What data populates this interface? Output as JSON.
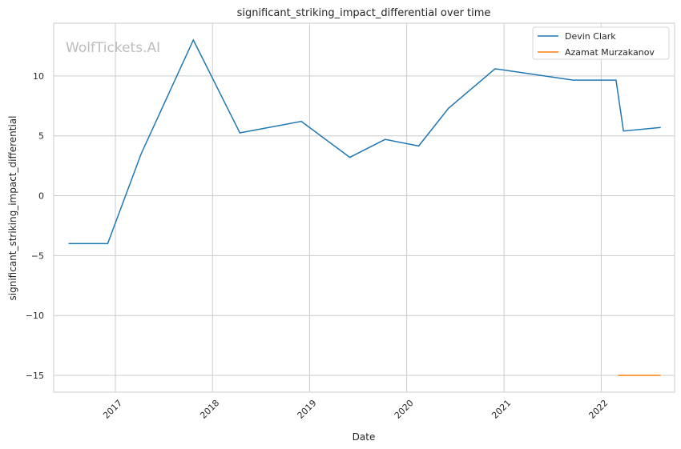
{
  "chart_data": {
    "type": "line",
    "title": "significant_striking_impact_differential over time",
    "xlabel": "Date",
    "ylabel": "significant_striking_impact_differential",
    "watermark": "WolfTickets.AI",
    "x_ticks": [
      "2017",
      "2018",
      "2019",
      "2020",
      "2021",
      "2022"
    ],
    "y_ticks": [
      -15,
      -10,
      -5,
      0,
      5,
      10
    ],
    "y_tick_labels": [
      "−15",
      "−10",
      "−5",
      "0",
      "5",
      "10"
    ],
    "xlim": [
      "2016-05-14",
      "2022-10-04"
    ],
    "ylim": [
      -16.4,
      14.4
    ],
    "grid": true,
    "legend_position": "top-right",
    "series": [
      {
        "name": "Devin Clark",
        "color": "#1f77b4",
        "points": [
          {
            "x": "2016-07-09",
            "y": -4.0
          },
          {
            "x": "2016-12-03",
            "y": -4.0
          },
          {
            "x": "2017-04-08",
            "y": 3.5
          },
          {
            "x": "2017-10-21",
            "y": 13.0
          },
          {
            "x": "2018-04-14",
            "y": 5.25
          },
          {
            "x": "2018-12-01",
            "y": 6.2
          },
          {
            "x": "2019-06-01",
            "y": 3.2
          },
          {
            "x": "2019-10-12",
            "y": 4.7
          },
          {
            "x": "2020-02-15",
            "y": 4.15
          },
          {
            "x": "2020-06-06",
            "y": 7.3
          },
          {
            "x": "2020-11-28",
            "y": 10.6
          },
          {
            "x": "2021-09-18",
            "y": 9.65
          },
          {
            "x": "2022-02-26",
            "y": 9.65
          },
          {
            "x": "2022-03-26",
            "y": 5.4
          },
          {
            "x": "2022-08-13",
            "y": 5.7
          }
        ]
      },
      {
        "name": "Azamat Murzakanov",
        "color": "#ff7f0e",
        "points": [
          {
            "x": "2022-03-05",
            "y": -15.0
          },
          {
            "x": "2022-08-13",
            "y": -15.0
          }
        ]
      }
    ]
  }
}
